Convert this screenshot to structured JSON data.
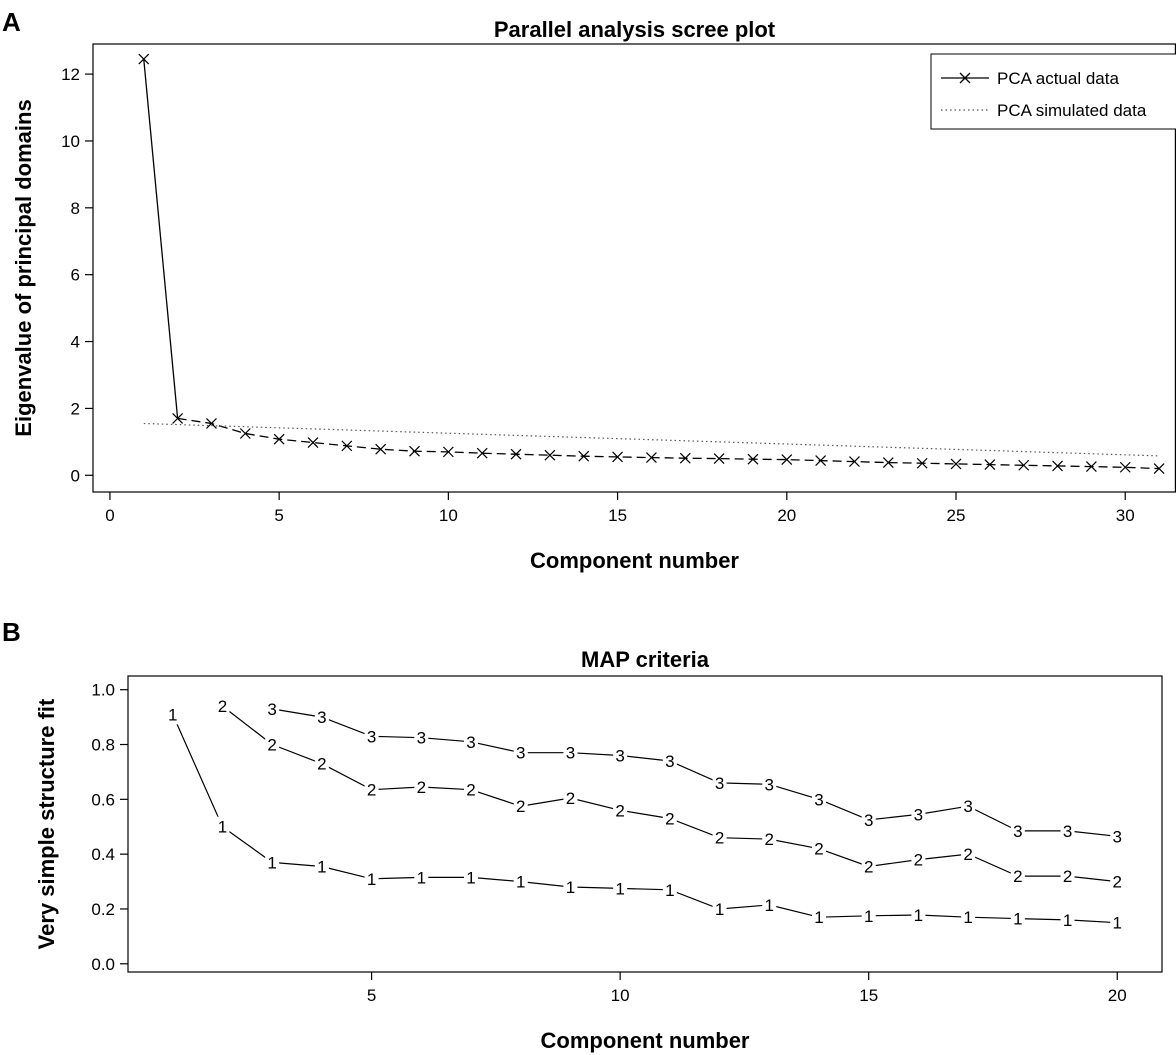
{
  "chart_data": [
    {
      "panel": "A",
      "type": "line",
      "title": "Parallel analysis scree plot",
      "xlabel": "Component number",
      "ylabel": "Eigenvalue of principal domains",
      "xlim": [
        -0.5,
        31.5
      ],
      "ylim": [
        -0.5,
        12.9
      ],
      "xticks": [
        0,
        5,
        10,
        15,
        20,
        25,
        30
      ],
      "yticks": [
        0,
        2,
        4,
        6,
        8,
        10,
        12
      ],
      "grid": false,
      "legend_position": "top-right",
      "series": [
        {
          "name": "PCA actual data",
          "style": "dashed-line-with-x-markers",
          "x": [
            1,
            2,
            3,
            4,
            5,
            6,
            7,
            8,
            9,
            10,
            11,
            12,
            13,
            14,
            15,
            16,
            17,
            18,
            19,
            20,
            21,
            22,
            23,
            24,
            25,
            26,
            27,
            28,
            29,
            30,
            31
          ],
          "values": [
            12.45,
            1.7,
            1.55,
            1.25,
            1.08,
            0.98,
            0.88,
            0.78,
            0.72,
            0.7,
            0.66,
            0.63,
            0.6,
            0.57,
            0.55,
            0.53,
            0.51,
            0.5,
            0.48,
            0.47,
            0.44,
            0.41,
            0.38,
            0.36,
            0.34,
            0.32,
            0.3,
            0.28,
            0.26,
            0.24,
            0.2
          ]
        },
        {
          "name": "PCA simulated data",
          "style": "dotted",
          "x": [
            1,
            31
          ],
          "values": [
            1.55,
            0.58
          ]
        }
      ]
    },
    {
      "panel": "B",
      "type": "line",
      "title": "MAP criteria",
      "xlabel": "Component number",
      "ylabel": "Very simple structure fit",
      "xlim": [
        0.1,
        20.9
      ],
      "ylim": [
        -0.03,
        1.05
      ],
      "xticks": [
        5,
        10,
        15,
        20
      ],
      "yticks": [
        0.0,
        0.2,
        0.4,
        0.6,
        0.8,
        1.0
      ],
      "grid": false,
      "marker_style": "series digit as plotted symbol",
      "series": [
        {
          "symbol": "1",
          "x": [
            1,
            2,
            3,
            4,
            5,
            6,
            7,
            8,
            9,
            10,
            11,
            12,
            13,
            14,
            15,
            16,
            17,
            18,
            19,
            20
          ],
          "values": [
            0.91,
            0.5,
            0.37,
            0.355,
            0.31,
            0.315,
            0.315,
            0.3,
            0.28,
            0.275,
            0.27,
            0.2,
            0.215,
            0.17,
            0.175,
            0.178,
            0.17,
            0.165,
            0.16,
            0.15
          ]
        },
        {
          "symbol": "2",
          "x": [
            2,
            3,
            4,
            5,
            6,
            7,
            8,
            9,
            10,
            11,
            12,
            13,
            14,
            15,
            16,
            17,
            18,
            19,
            20
          ],
          "values": [
            0.94,
            0.8,
            0.73,
            0.635,
            0.645,
            0.635,
            0.575,
            0.605,
            0.56,
            0.53,
            0.46,
            0.455,
            0.42,
            0.355,
            0.38,
            0.4,
            0.32,
            0.32,
            0.3
          ]
        },
        {
          "symbol": "3",
          "x": [
            3,
            4,
            5,
            6,
            7,
            8,
            9,
            10,
            11,
            12,
            13,
            14,
            15,
            16,
            17,
            18,
            19,
            20
          ],
          "values": [
            0.93,
            0.9,
            0.83,
            0.825,
            0.81,
            0.77,
            0.77,
            0.76,
            0.74,
            0.66,
            0.655,
            0.6,
            0.525,
            0.545,
            0.575,
            0.485,
            0.485,
            0.465
          ]
        }
      ]
    }
  ]
}
